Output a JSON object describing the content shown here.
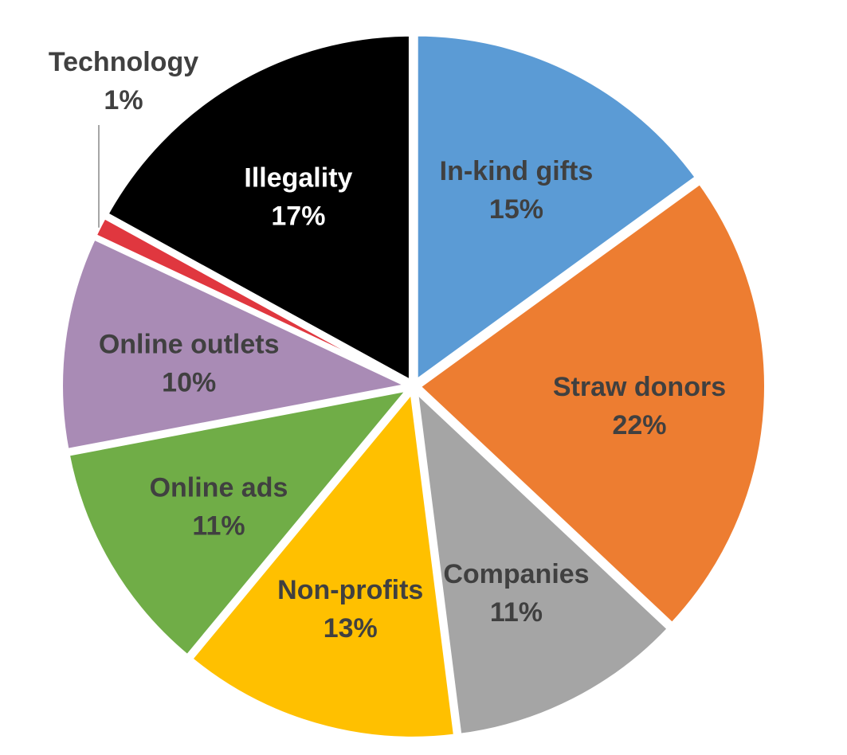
{
  "chart_data": {
    "type": "pie",
    "title": "",
    "start_angle_deg": 0,
    "direction": "clockwise",
    "slices": [
      {
        "label": "In-kind gifts",
        "percent_label": "15%",
        "value": 15,
        "color": "#5b9bd5",
        "text_color": "#404040"
      },
      {
        "label": "Straw donors",
        "percent_label": "22%",
        "value": 22,
        "color": "#ed7d31",
        "text_color": "#404040"
      },
      {
        "label": "Companies",
        "percent_label": "11%",
        "value": 11,
        "color": "#a5a5a5",
        "text_color": "#404040"
      },
      {
        "label": "Non-profits",
        "percent_label": "13%",
        "value": 13,
        "color": "#ffc000",
        "text_color": "#404040"
      },
      {
        "label": "Online ads",
        "percent_label": "11%",
        "value": 11,
        "color": "#70ad47",
        "text_color": "#404040"
      },
      {
        "label": "Online outlets",
        "percent_label": "10%",
        "value": 10,
        "color": "#a98bb5",
        "text_color": "#404040"
      },
      {
        "label": "Technology",
        "percent_label": "1%",
        "value": 1,
        "color": "#e0373f",
        "text_color": "#404040",
        "label_outside": true
      },
      {
        "label": "Illegality",
        "percent_label": "17%",
        "value": 17,
        "color": "#000000",
        "text_color": "#ffffff"
      }
    ]
  }
}
